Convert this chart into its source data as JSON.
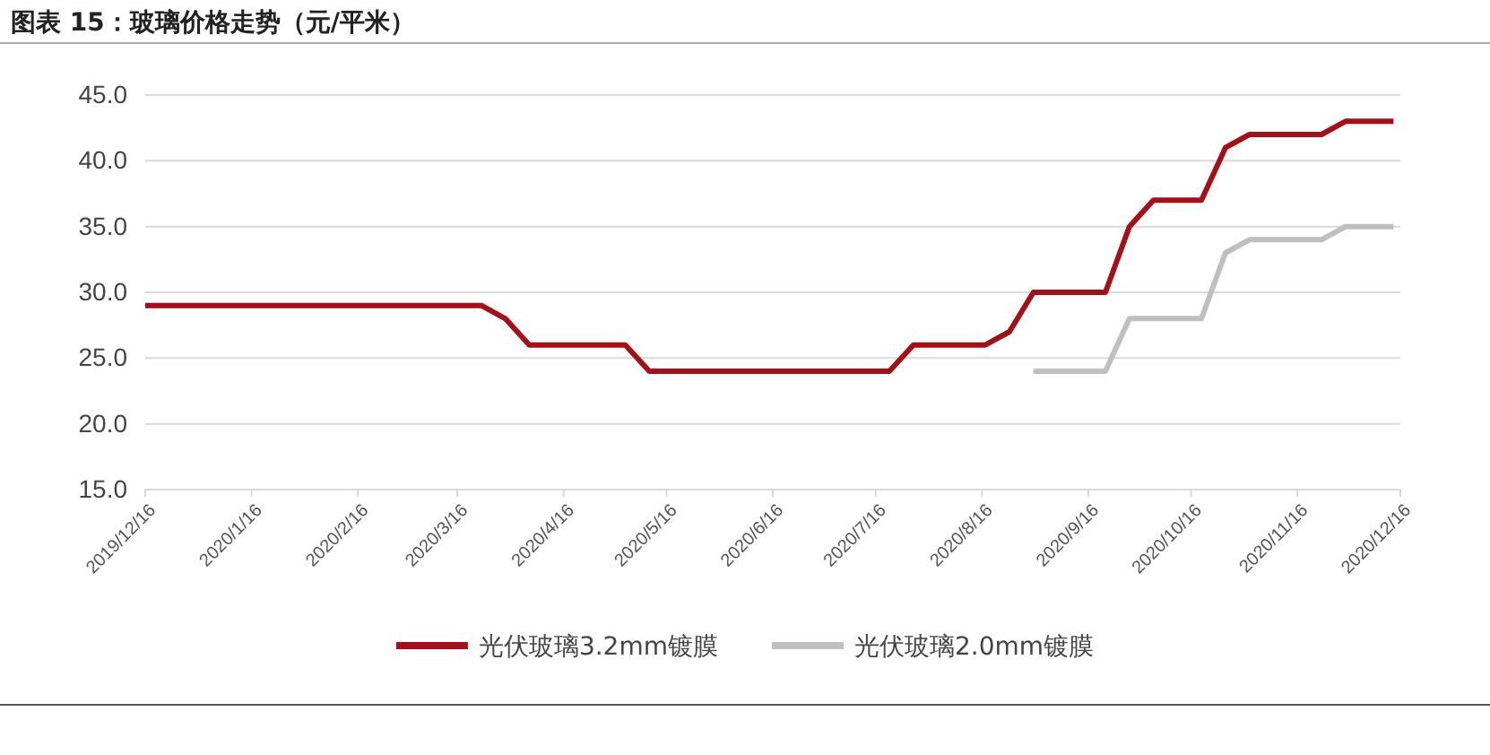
{
  "chart_data": {
    "type": "line",
    "title": "图表 15：玻璃价格走势（元/平米）",
    "series": [
      {
        "name": "光伏玻璃3.2mm镀膜",
        "color": "#a50f15",
        "x": [
          "2019-12-16",
          "2020-03-23",
          "2020-03-30",
          "2020-04-06",
          "2020-05-04",
          "2020-05-11",
          "2020-07-20",
          "2020-07-27",
          "2020-08-17",
          "2020-08-24",
          "2020-08-31",
          "2020-09-21",
          "2020-09-28",
          "2020-10-05",
          "2020-10-19",
          "2020-10-26",
          "2020-11-02",
          "2020-11-23",
          "2020-11-30",
          "2020-12-14"
        ],
        "values": [
          29,
          29,
          28,
          26,
          26,
          24,
          24,
          26,
          26,
          27,
          30,
          30,
          35,
          37,
          37,
          41,
          42,
          42,
          43,
          43
        ]
      },
      {
        "name": "光伏玻璃2.0mm镀膜",
        "color": "#bfbfbf",
        "x": [
          "2020-08-31",
          "2020-09-21",
          "2020-09-28",
          "2020-10-19",
          "2020-10-26",
          "2020-11-02",
          "2020-11-23",
          "2020-11-30",
          "2020-12-14"
        ],
        "values": [
          24,
          24,
          28,
          28,
          33,
          34,
          34,
          35,
          35
        ]
      }
    ],
    "xlim": [
      "2019-12-16",
      "2020-12-16"
    ],
    "xticks": [
      {
        "value": "2019-12-16",
        "label": "2019/12/16"
      },
      {
        "value": "2020-01-16",
        "label": "2020/1/16"
      },
      {
        "value": "2020-02-16",
        "label": "2020/2/16"
      },
      {
        "value": "2020-03-16",
        "label": "2020/3/16"
      },
      {
        "value": "2020-04-16",
        "label": "2020/4/16"
      },
      {
        "value": "2020-05-16",
        "label": "2020/5/16"
      },
      {
        "value": "2020-06-16",
        "label": "2020/6/16"
      },
      {
        "value": "2020-07-16",
        "label": "2020/7/16"
      },
      {
        "value": "2020-08-16",
        "label": "2020/8/16"
      },
      {
        "value": "2020-09-16",
        "label": "2020/9/16"
      },
      {
        "value": "2020-10-16",
        "label": "2020/10/16"
      },
      {
        "value": "2020-11-16",
        "label": "2020/11/16"
      },
      {
        "value": "2020-12-16",
        "label": "2020/12/16"
      }
    ],
    "ylim": [
      15,
      45
    ],
    "yticks": [
      {
        "value": 15,
        "label": "15.0"
      },
      {
        "value": 20,
        "label": "20.0"
      },
      {
        "value": 25,
        "label": "25.0"
      },
      {
        "value": 30,
        "label": "30.0"
      },
      {
        "value": 35,
        "label": "35.0"
      },
      {
        "value": 40,
        "label": "40.0"
      },
      {
        "value": 45,
        "label": "45.0"
      }
    ],
    "grid": "y",
    "legend": "bottom",
    "marker": "none",
    "line_style": "solid"
  }
}
